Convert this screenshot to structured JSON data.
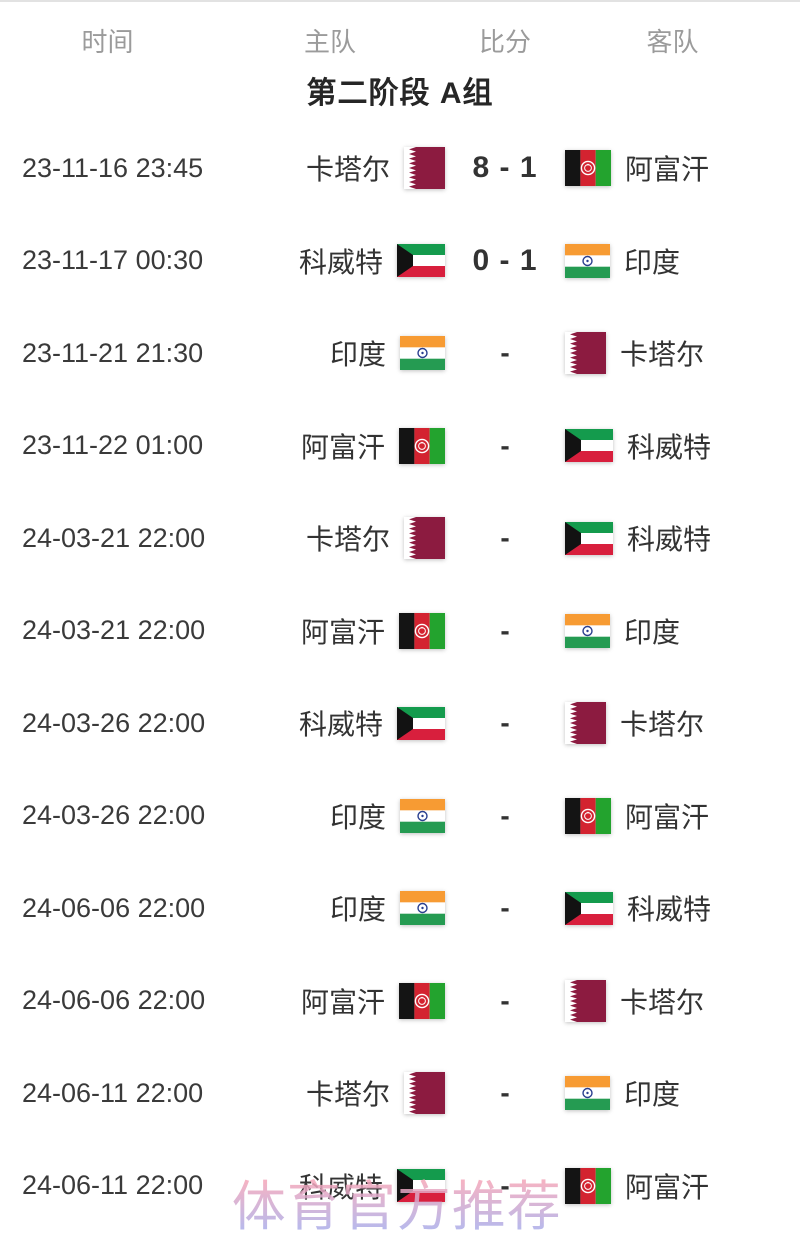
{
  "table": {
    "columns": {
      "time": "时间",
      "home": "主队",
      "score": "比分",
      "away": "客队"
    },
    "group_title": "第二阶段 A组",
    "teams": {
      "qatar": {
        "name": "卡塔尔",
        "flag": "qatar-flag"
      },
      "afghanistan": {
        "name": "阿富汗",
        "flag": "afghanistan-flag"
      },
      "kuwait": {
        "name": "科威特",
        "flag": "kuwait-flag"
      },
      "india": {
        "name": "印度",
        "flag": "india-flag"
      }
    },
    "rows": [
      {
        "time": "23-11-16 23:45",
        "home": "qatar",
        "score": "8 - 1",
        "away": "afghanistan"
      },
      {
        "time": "23-11-17 00:30",
        "home": "kuwait",
        "score": "0 - 1",
        "away": "india"
      },
      {
        "time": "23-11-21 21:30",
        "home": "india",
        "score": "-",
        "away": "qatar"
      },
      {
        "time": "23-11-22 01:00",
        "home": "afghanistan",
        "score": "-",
        "away": "kuwait"
      },
      {
        "time": "24-03-21 22:00",
        "home": "qatar",
        "score": "-",
        "away": "kuwait"
      },
      {
        "time": "24-03-21 22:00",
        "home": "afghanistan",
        "score": "-",
        "away": "india"
      },
      {
        "time": "24-03-26 22:00",
        "home": "kuwait",
        "score": "-",
        "away": "qatar"
      },
      {
        "time": "24-03-26 22:00",
        "home": "india",
        "score": "-",
        "away": "afghanistan"
      },
      {
        "time": "24-06-06 22:00",
        "home": "india",
        "score": "-",
        "away": "kuwait"
      },
      {
        "time": "24-06-06 22:00",
        "home": "afghanistan",
        "score": "-",
        "away": "qatar"
      },
      {
        "time": "24-06-11 22:00",
        "home": "qatar",
        "score": "-",
        "away": "india"
      },
      {
        "time": "24-06-11 22:00",
        "home": "kuwait",
        "score": "-",
        "away": "afghanistan"
      }
    ]
  },
  "watermark": {
    "text": "体育官方推荐"
  },
  "colors": {
    "header_text": "#9b9b9b",
    "body_text": "#333333",
    "title_text": "#262626",
    "watermark_pink": "#f3a6ba",
    "watermark_lavender": "#a7aeec"
  },
  "flag_colors": {
    "qatar": {
      "maroon": "#8c1b40",
      "white": "#ffffff"
    },
    "kuwait": {
      "green": "#149b4d",
      "white": "#ffffff",
      "red": "#d81f3d",
      "black": "#121212"
    },
    "india": {
      "saffron": "#f79b33",
      "white": "#ffffff",
      "green": "#259b52",
      "navy": "#2a3f8f"
    },
    "afghanistan": {
      "black": "#141414",
      "red": "#d32330",
      "green": "#23a32e",
      "white": "#ffffff"
    }
  }
}
